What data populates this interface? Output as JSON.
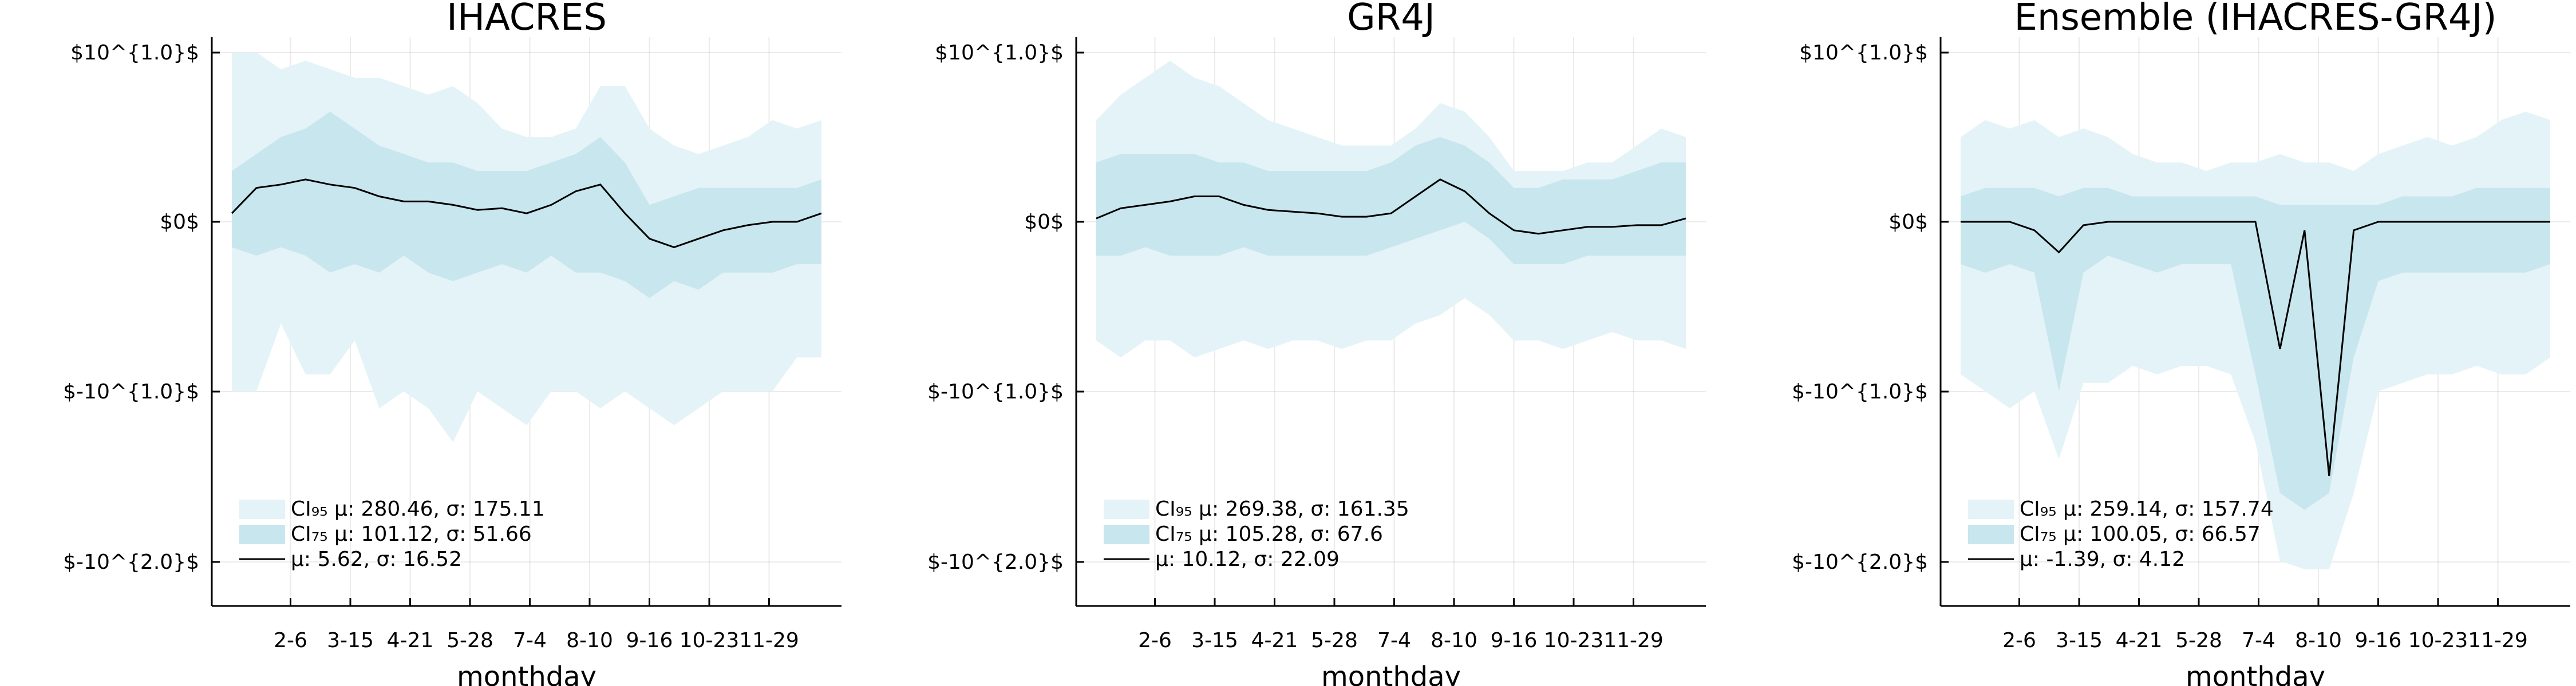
{
  "chart_data": [
    {
      "type": "area",
      "title": "IHACRES",
      "xlabel": "monthday",
      "ylabel": "",
      "x_ticks": [
        "2-6",
        "3-15",
        "4-21",
        "5-28",
        "7-4",
        "8-10",
        "9-16",
        "10-23",
        "11-29"
      ],
      "y_ticks": [
        "$10^{1.0}$",
        "$0$",
        "$-10^{1.0}$",
        "$-10^{2.0}$"
      ],
      "grid": true,
      "legend": "bottom-left",
      "series": [
        {
          "name": "CI₉₅ μ: 280.46, σ: 175.11",
          "kind": "band",
          "color": "#e4f3f7",
          "lower": [
            -1.0,
            -1.0,
            -0.6,
            -0.9,
            -0.9,
            -0.7,
            -1.1,
            -1.0,
            -1.1,
            -1.3,
            -1.0,
            -1.1,
            -1.2,
            -1.0,
            -1.0,
            -1.1,
            -1.0,
            -1.1,
            -1.2,
            -1.1,
            -1.0,
            -1.0,
            -1.0,
            -0.8,
            -0.8
          ],
          "upper": [
            1.0,
            1.0,
            0.9,
            0.95,
            0.9,
            0.85,
            0.85,
            0.8,
            0.75,
            0.8,
            0.7,
            0.55,
            0.5,
            0.5,
            0.55,
            0.8,
            0.8,
            0.55,
            0.45,
            0.4,
            0.45,
            0.5,
            0.6,
            0.55,
            0.6
          ]
        },
        {
          "name": "CI₇₅ μ: 101.12, σ: 51.66",
          "kind": "band",
          "color": "#c8e6ee",
          "lower": [
            -0.15,
            -0.2,
            -0.15,
            -0.2,
            -0.3,
            -0.25,
            -0.3,
            -0.2,
            -0.3,
            -0.35,
            -0.3,
            -0.25,
            -0.3,
            -0.2,
            -0.3,
            -0.3,
            -0.35,
            -0.45,
            -0.35,
            -0.4,
            -0.3,
            -0.3,
            -0.3,
            -0.25,
            -0.25
          ],
          "upper": [
            0.3,
            0.4,
            0.5,
            0.55,
            0.65,
            0.55,
            0.45,
            0.4,
            0.35,
            0.35,
            0.3,
            0.3,
            0.3,
            0.35,
            0.4,
            0.5,
            0.35,
            0.1,
            0.15,
            0.2,
            0.2,
            0.2,
            0.2,
            0.2,
            0.25
          ]
        },
        {
          "name": "μ: 5.62, σ: 16.52",
          "kind": "line",
          "color": "#000000",
          "values": [
            0.05,
            0.2,
            0.22,
            0.25,
            0.22,
            0.2,
            0.15,
            0.12,
            0.12,
            0.1,
            0.07,
            0.08,
            0.05,
            0.1,
            0.18,
            0.22,
            0.05,
            -0.1,
            -0.15,
            -0.1,
            -0.05,
            -0.02,
            0.0,
            0.0,
            0.05
          ]
        }
      ]
    },
    {
      "type": "area",
      "title": "GR4J",
      "xlabel": "monthday",
      "ylabel": "",
      "x_ticks": [
        "2-6",
        "3-15",
        "4-21",
        "5-28",
        "7-4",
        "8-10",
        "9-16",
        "10-23",
        "11-29"
      ],
      "y_ticks": [
        "$10^{1.0}$",
        "$0$",
        "$-10^{1.0}$",
        "$-10^{2.0}$"
      ],
      "grid": true,
      "legend": "bottom-left",
      "series": [
        {
          "name": "CI₉₅ μ: 269.38, σ: 161.35",
          "kind": "band",
          "color": "#e4f3f7",
          "lower": [
            -0.7,
            -0.8,
            -0.7,
            -0.7,
            -0.8,
            -0.75,
            -0.7,
            -0.75,
            -0.7,
            -0.7,
            -0.75,
            -0.7,
            -0.7,
            -0.6,
            -0.55,
            -0.45,
            -0.55,
            -0.7,
            -0.7,
            -0.75,
            -0.7,
            -0.65,
            -0.7,
            -0.7,
            -0.75
          ],
          "upper": [
            0.6,
            0.75,
            0.85,
            0.95,
            0.85,
            0.8,
            0.7,
            0.6,
            0.55,
            0.5,
            0.45,
            0.45,
            0.45,
            0.55,
            0.7,
            0.65,
            0.5,
            0.3,
            0.3,
            0.3,
            0.35,
            0.35,
            0.45,
            0.55,
            0.5
          ]
        },
        {
          "name": "CI₇₅ μ: 105.28, σ: 67.6",
          "kind": "band",
          "color": "#c8e6ee",
          "lower": [
            -0.2,
            -0.2,
            -0.15,
            -0.2,
            -0.2,
            -0.2,
            -0.15,
            -0.2,
            -0.2,
            -0.2,
            -0.2,
            -0.2,
            -0.15,
            -0.1,
            -0.05,
            0.0,
            -0.1,
            -0.25,
            -0.25,
            -0.25,
            -0.2,
            -0.2,
            -0.2,
            -0.2,
            -0.2
          ],
          "upper": [
            0.35,
            0.4,
            0.4,
            0.4,
            0.4,
            0.35,
            0.35,
            0.3,
            0.3,
            0.3,
            0.3,
            0.3,
            0.35,
            0.45,
            0.5,
            0.45,
            0.35,
            0.2,
            0.2,
            0.25,
            0.25,
            0.25,
            0.3,
            0.35,
            0.35
          ]
        },
        {
          "name": "μ: 10.12, σ: 22.09",
          "kind": "line",
          "color": "#000000",
          "values": [
            0.02,
            0.08,
            0.1,
            0.12,
            0.15,
            0.15,
            0.1,
            0.07,
            0.06,
            0.05,
            0.03,
            0.03,
            0.05,
            0.15,
            0.25,
            0.18,
            0.05,
            -0.05,
            -0.07,
            -0.05,
            -0.03,
            -0.03,
            -0.02,
            -0.02,
            0.02
          ]
        }
      ]
    },
    {
      "type": "area",
      "title": "Ensemble (IHACRES-GR4J)",
      "xlabel": "monthday",
      "ylabel": "",
      "x_ticks": [
        "2-6",
        "3-15",
        "4-21",
        "5-28",
        "7-4",
        "8-10",
        "9-16",
        "10-23",
        "11-29"
      ],
      "y_ticks": [
        "$10^{1.0}$",
        "$0$",
        "$-10^{1.0}$",
        "$-10^{2.0}$"
      ],
      "grid": true,
      "legend": "bottom-left",
      "series": [
        {
          "name": "CI₉₅ μ: 259.14, σ: 157.74",
          "kind": "band",
          "color": "#e4f3f7",
          "lower": [
            -0.9,
            -1.0,
            -1.1,
            -1.0,
            -1.4,
            -0.95,
            -0.95,
            -0.85,
            -0.9,
            -0.85,
            -0.85,
            -0.9,
            -1.3,
            -2.0,
            -2.05,
            -2.05,
            -1.6,
            -1.0,
            -0.95,
            -0.9,
            -0.9,
            -0.85,
            -0.9,
            -0.9,
            -0.8
          ],
          "upper": [
            0.5,
            0.6,
            0.55,
            0.6,
            0.5,
            0.55,
            0.5,
            0.4,
            0.35,
            0.35,
            0.3,
            0.35,
            0.35,
            0.4,
            0.35,
            0.35,
            0.3,
            0.4,
            0.45,
            0.5,
            0.45,
            0.5,
            0.6,
            0.65,
            0.6
          ]
        },
        {
          "name": "CI₇₅ μ: 100.05, σ: 66.57",
          "kind": "band",
          "color": "#c8e6ee",
          "lower": [
            -0.25,
            -0.3,
            -0.25,
            -0.3,
            -1.0,
            -0.3,
            -0.2,
            -0.25,
            -0.3,
            -0.25,
            -0.25,
            -0.25,
            -0.9,
            -1.6,
            -1.7,
            -1.6,
            -0.8,
            -0.35,
            -0.3,
            -0.3,
            -0.3,
            -0.3,
            -0.3,
            -0.3,
            -0.25
          ],
          "upper": [
            0.15,
            0.2,
            0.2,
            0.2,
            0.15,
            0.2,
            0.2,
            0.15,
            0.15,
            0.15,
            0.15,
            0.15,
            0.15,
            0.1,
            0.1,
            0.1,
            0.1,
            0.1,
            0.15,
            0.15,
            0.15,
            0.2,
            0.2,
            0.2,
            0.2
          ]
        },
        {
          "name": "μ: -1.39, σ: 4.12",
          "kind": "line",
          "color": "#000000",
          "values": [
            0.0,
            0.0,
            0.0,
            -0.05,
            -0.18,
            -0.02,
            0.0,
            0.0,
            0.0,
            0.0,
            0.0,
            0.0,
            0.0,
            -0.75,
            -0.05,
            -1.5,
            -0.05,
            0.0,
            0.0,
            0.0,
            0.0,
            0.0,
            0.0,
            0.0,
            0.0
          ]
        }
      ]
    }
  ]
}
